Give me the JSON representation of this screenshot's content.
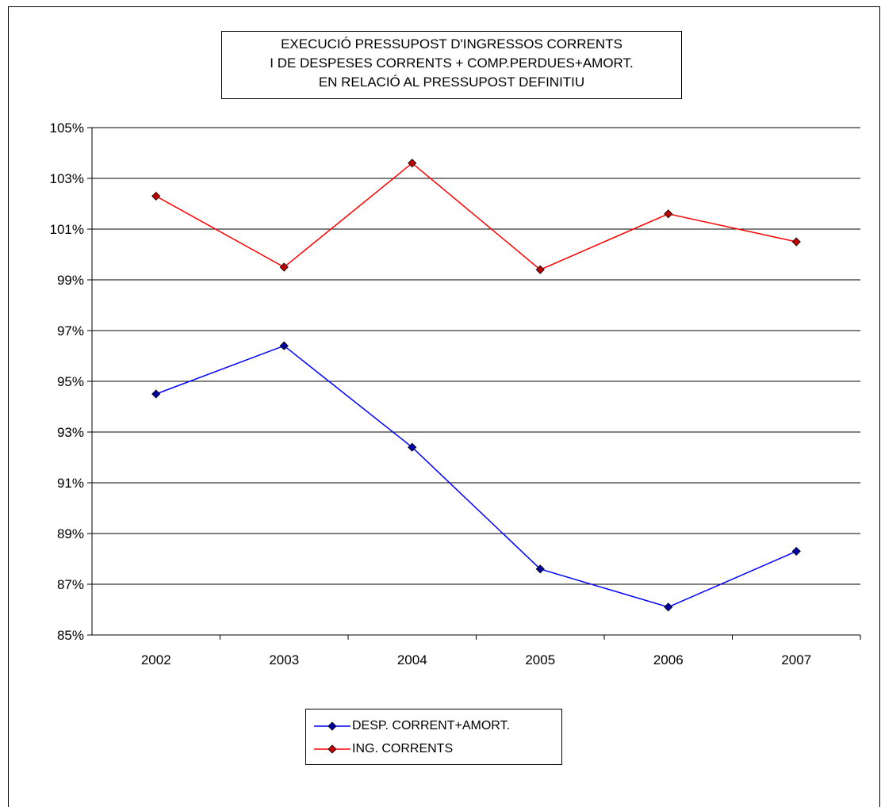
{
  "chart_data": {
    "type": "line",
    "title_lines": [
      "EXECUCIÓ PRESSUPOST D'INGRESSOS CORRENTS",
      "I DE DESPESES CORRENTS + COMP.PERDUES+AMORT.",
      "EN RELACIÓ AL PRESSUPOST DEFINITIU"
    ],
    "categories": [
      "2002",
      "2003",
      "2004",
      "2005",
      "2006",
      "2007"
    ],
    "y_ticks": [
      "85%",
      "87%",
      "89%",
      "91%",
      "93%",
      "95%",
      "97%",
      "99%",
      "101%",
      "103%",
      "105%"
    ],
    "ylim": [
      85,
      105
    ],
    "y_step": 2,
    "grid": true,
    "legend_position": "bottom",
    "series": [
      {
        "name": "DESP. CORRENT+AMORT.",
        "color": "#0000ff",
        "marker_color": "#0000a0",
        "values": [
          94.5,
          96.4,
          92.4,
          87.6,
          86.1,
          88.3
        ]
      },
      {
        "name": "ING. CORRENTS",
        "color": "#ff0000",
        "marker_color": "#c00000",
        "values": [
          102.3,
          99.5,
          103.6,
          99.4,
          101.6,
          100.5
        ]
      }
    ]
  }
}
